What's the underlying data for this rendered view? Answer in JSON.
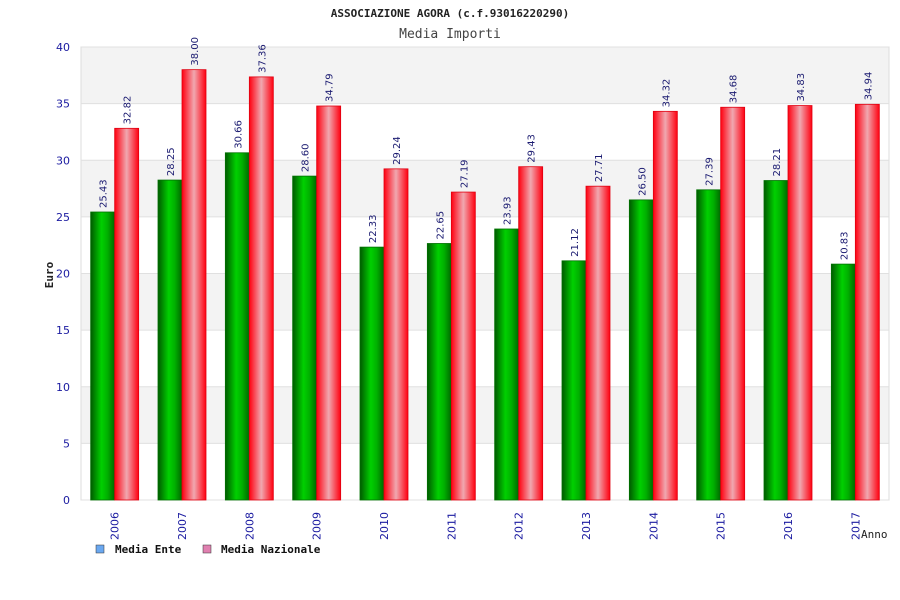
{
  "chart_data": {
    "type": "bar",
    "title": "ASSOCIAZIONE AGORA (c.f.93016220290)",
    "subtitle": "Media Importi",
    "xlabel": "Anno",
    "ylabel": "Euro",
    "ylim": [
      0,
      40
    ],
    "yticks": [
      "0",
      "5",
      "10",
      "15",
      "20",
      "25",
      "30",
      "35",
      "40"
    ],
    "categories": [
      "2006",
      "2007",
      "2008",
      "2009",
      "2010",
      "2011",
      "2012",
      "2013",
      "2014",
      "2015",
      "2016",
      "2017"
    ],
    "series": [
      {
        "name": "Media Ente",
        "values": [
          25.43,
          28.25,
          30.66,
          28.6,
          22.33,
          22.65,
          23.93,
          21.12,
          26.5,
          27.39,
          28.21,
          20.83
        ],
        "labels": [
          "25.43",
          "28.25",
          "30.66",
          "28.60",
          "22.33",
          "22.65",
          "23.93",
          "21.12",
          "26.50",
          "27.39",
          "28.21",
          "20.83"
        ],
        "color": "#00c000",
        "legend_color": "#6aa8f0"
      },
      {
        "name": "Media Nazionale",
        "values": [
          32.82,
          38.0,
          37.36,
          34.79,
          29.24,
          27.19,
          29.43,
          27.71,
          34.32,
          34.68,
          34.83,
          34.94
        ],
        "labels": [
          "32.82",
          "38.00",
          "37.36",
          "34.79",
          "29.24",
          "27.19",
          "29.43",
          "27.71",
          "34.32",
          "34.68",
          "34.83",
          "34.94"
        ],
        "color": "#ff1020",
        "legend_color": "#e080b0"
      }
    ],
    "grid": true,
    "legend_position": "bottom-left"
  }
}
